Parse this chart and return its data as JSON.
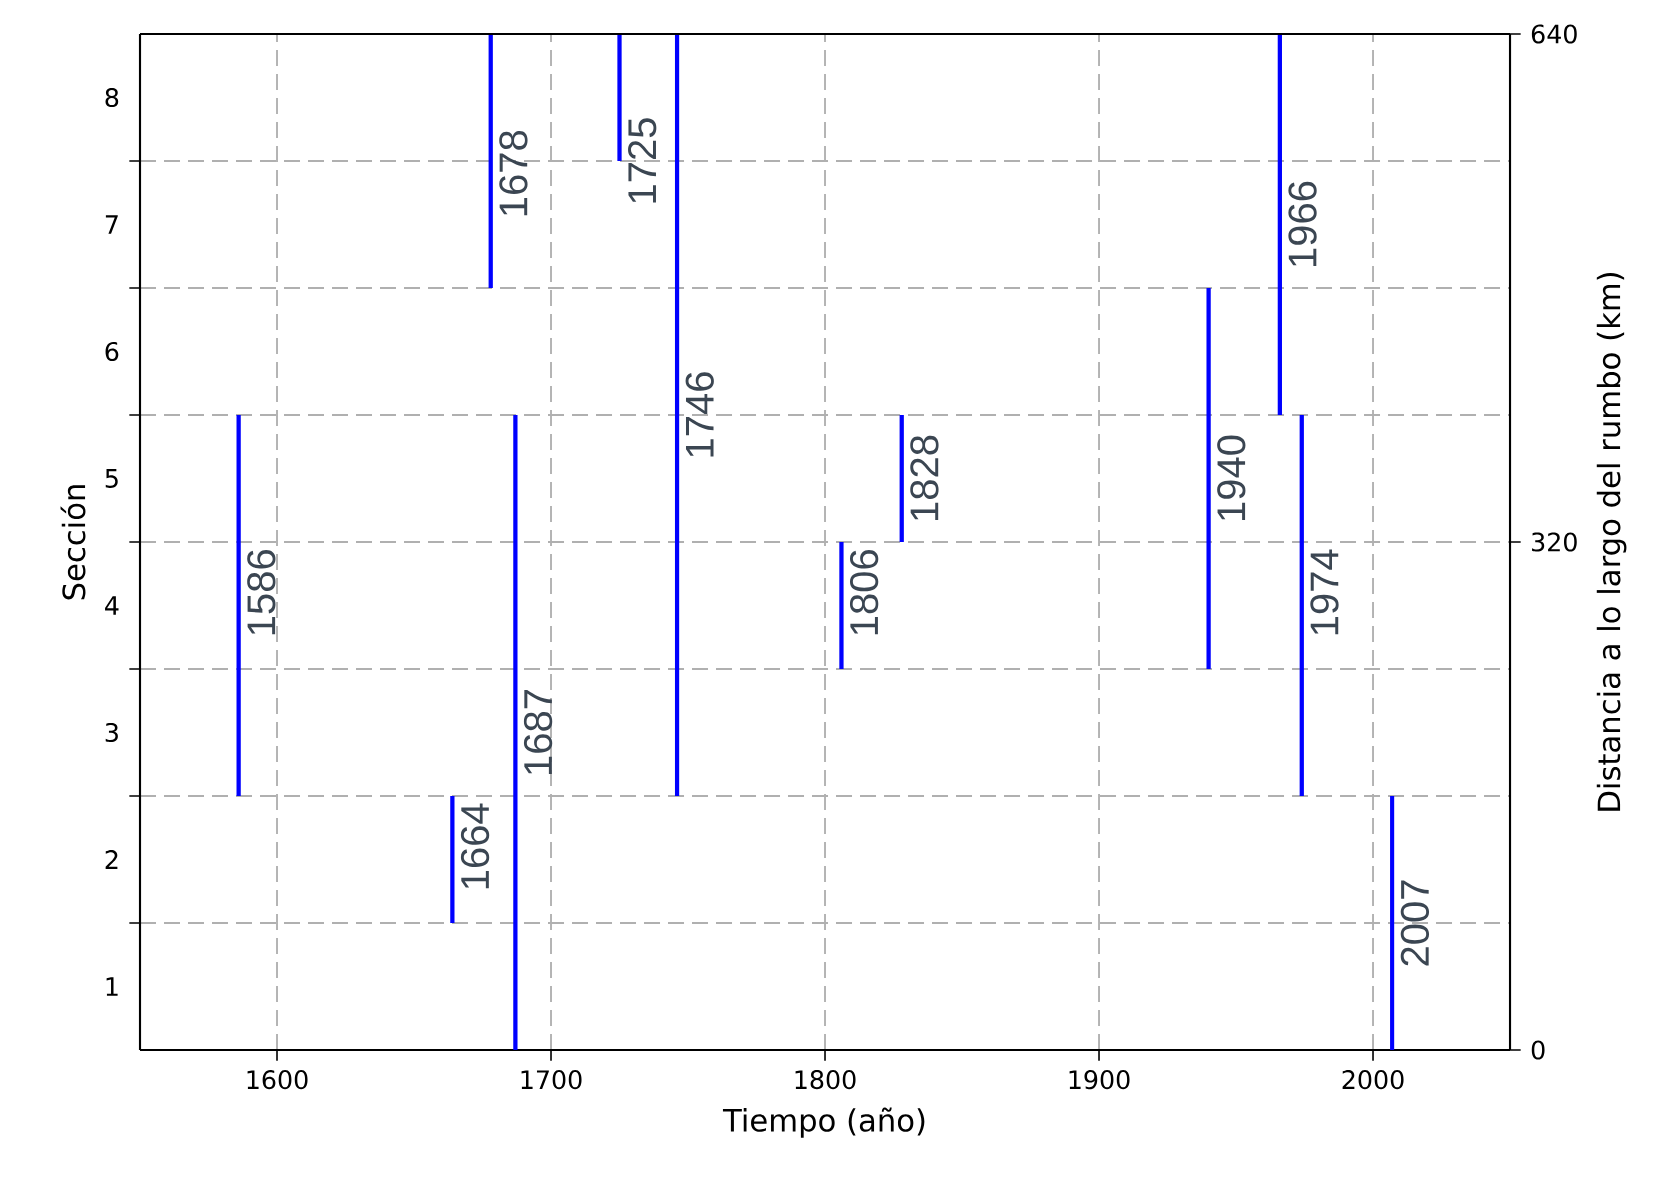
{
  "chart_data": {
    "type": "line",
    "xlabel": "Tiempo (año)",
    "ylabel": "Sección",
    "y2label": "Distancia a lo largo del rumbo (km)",
    "xlim": [
      1550,
      2050
    ],
    "xticks": [
      1600,
      1700,
      1800,
      1900,
      2000
    ],
    "ylim": [
      0.5,
      8.5
    ],
    "yticks": [
      {
        "value": 1,
        "label": "1"
      },
      {
        "value": 1.5,
        "label": null
      },
      {
        "value": 2,
        "label": "2"
      },
      {
        "value": 2.5,
        "label": null
      },
      {
        "value": 3,
        "label": "3"
      },
      {
        "value": 3.5,
        "label": null
      },
      {
        "value": 4,
        "label": "4"
      },
      {
        "value": 4.5,
        "label": null
      },
      {
        "value": 5,
        "label": "5"
      },
      {
        "value": 5.5,
        "label": null
      },
      {
        "value": 6,
        "label": "6"
      },
      {
        "value": 6.5,
        "label": null
      },
      {
        "value": 7,
        "label": "7"
      },
      {
        "value": 7.5,
        "label": null
      },
      {
        "value": 8,
        "label": "8"
      }
    ],
    "y2lim": [
      0,
      640
    ],
    "y2ticks": [
      0,
      320,
      640
    ],
    "grid": true,
    "series": [
      {
        "color": "#0000ff",
        "x": [
          1586,
          1586
        ],
        "values": [
          2.5,
          5.5
        ]
      },
      {
        "color": "#0000ff",
        "x": [
          1664,
          1664
        ],
        "values": [
          1.5,
          2.5
        ]
      },
      {
        "color": "#0000ff",
        "x": [
          1678,
          1678
        ],
        "values": [
          6.5,
          8.5
        ]
      },
      {
        "color": "#0000ff",
        "x": [
          1687,
          1687
        ],
        "values": [
          0.5,
          5.5
        ]
      },
      {
        "color": "#0000ff",
        "x": [
          1725,
          1725
        ],
        "values": [
          7.5,
          8.5
        ]
      },
      {
        "color": "#0000ff",
        "x": [
          1746,
          1746
        ],
        "values": [
          2.5,
          8.5
        ]
      },
      {
        "color": "#0000ff",
        "x": [
          1806,
          1806
        ],
        "values": [
          3.5,
          4.5
        ]
      },
      {
        "color": "#0000ff",
        "x": [
          1828,
          1828
        ],
        "values": [
          4.5,
          5.5
        ]
      },
      {
        "color": "#0000ff",
        "x": [
          1940,
          1940
        ],
        "values": [
          3.5,
          6.5
        ]
      },
      {
        "color": "#0000ff",
        "x": [
          1966,
          1966
        ],
        "values": [
          5.5,
          8.5
        ]
      },
      {
        "color": "#0000ff",
        "x": [
          1974,
          1974
        ],
        "values": [
          2.5,
          5.5
        ]
      },
      {
        "color": "#0000ff",
        "x": [
          2007,
          2007
        ],
        "values": [
          0.5,
          2.5
        ]
      }
    ],
    "annotations": [
      {
        "text": "1586",
        "x": 1586,
        "y": 4.1
      },
      {
        "text": "1664",
        "x": 1664,
        "y": 2.1
      },
      {
        "text": "1678",
        "x": 1678,
        "y": 7.4
      },
      {
        "text": "1687",
        "x": 1687,
        "y": 3.0
      },
      {
        "text": "1725",
        "x": 1725,
        "y": 7.5
      },
      {
        "text": "1746",
        "x": 1746,
        "y": 5.5
      },
      {
        "text": "1806",
        "x": 1806,
        "y": 4.1
      },
      {
        "text": "1828",
        "x": 1828,
        "y": 5.0
      },
      {
        "text": "1940",
        "x": 1940,
        "y": 5.0
      },
      {
        "text": "1966",
        "x": 1966,
        "y": 7.0
      },
      {
        "text": "1974",
        "x": 1974,
        "y": 4.1
      },
      {
        "text": "2007",
        "x": 2007,
        "y": 1.5
      }
    ]
  }
}
